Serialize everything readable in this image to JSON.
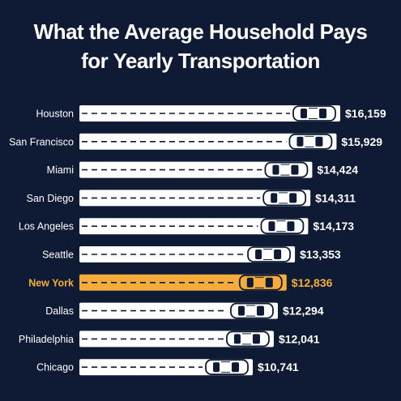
{
  "title_lines": [
    "What the Average Household Pays",
    "for Yearly Transportation"
  ],
  "colors": {
    "background": "#0f1b34",
    "bar": "#ffffff",
    "highlight": "#f5ac3b",
    "dash": "#0f1b34",
    "label": "#ffffff",
    "highlight_label": "#f5ac3b"
  },
  "chart_data": {
    "type": "bar",
    "orientation": "horizontal",
    "title": "What the Average Household Pays for Yearly Transportation",
    "categories": [
      "Houston",
      "San Francisco",
      "Miami",
      "San Diego",
      "Los Angeles",
      "Seattle",
      "New York",
      "Dallas",
      "Philadelphia",
      "Chicago"
    ],
    "values": [
      16159,
      15929,
      14424,
      14311,
      14173,
      13353,
      12836,
      12294,
      12041,
      10741
    ],
    "value_labels": [
      "$16,159",
      "$15,929",
      "$14,424",
      "$14,311",
      "$14,173",
      "$13,353",
      "$12,836",
      "$12,294",
      "$12,041",
      "$10,741"
    ],
    "highlight": "New York",
    "bar_icon": "car-top-view-icon",
    "xlabel": "",
    "ylabel": ""
  }
}
